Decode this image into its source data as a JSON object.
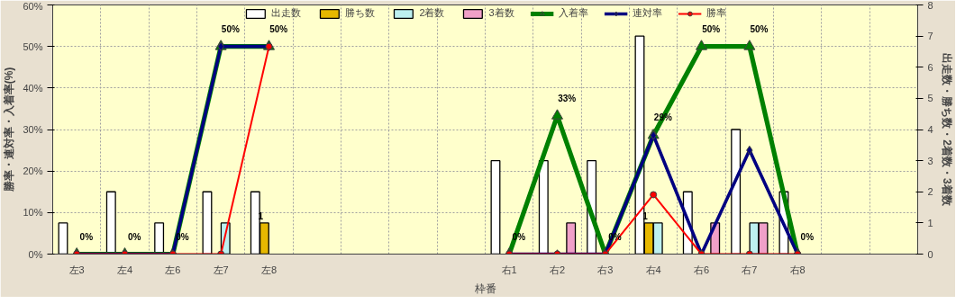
{
  "chart_data": {
    "type": "bar",
    "xlabel": "枠番",
    "ylabel": "勝率・連対率・入着率(%)",
    "y2label": "出走数・勝ち数・2着数・3着数",
    "categories": [
      "左3",
      "左4",
      "左6",
      "左7",
      "左8",
      null,
      null,
      null,
      null,
      "右1",
      "右2",
      "右3",
      "右4",
      "右6",
      "右7",
      "右8",
      null,
      null
    ],
    "ylim": [
      0,
      60
    ],
    "yticks": [
      {
        "value": 0,
        "label": "0%"
      },
      {
        "value": 10,
        "label": "10%"
      },
      {
        "value": 20,
        "label": "20%"
      },
      {
        "value": 30,
        "label": "30%"
      },
      {
        "value": 40,
        "label": "40%"
      },
      {
        "value": 50,
        "label": "50%"
      },
      {
        "value": 60,
        "label": "60%"
      }
    ],
    "y2lim": [
      0,
      8
    ],
    "y2ticks": [
      0,
      1,
      2,
      3,
      4,
      5,
      6,
      7,
      8
    ],
    "grid": true,
    "legend": "top",
    "series": [
      {
        "name": "出走数",
        "axis": "y2",
        "color": "#ffffff",
        "values": [
          1,
          2,
          1,
          2,
          2,
          null,
          null,
          null,
          null,
          3,
          3,
          3,
          7,
          2,
          4,
          2,
          null,
          null
        ]
      },
      {
        "name": "勝ち数",
        "axis": "y2",
        "color": "#e6b800",
        "values": [
          null,
          null,
          null,
          null,
          1,
          null,
          null,
          null,
          null,
          null,
          null,
          null,
          1,
          null,
          null,
          null,
          null,
          null
        ],
        "value_labels": [
          null,
          null,
          null,
          null,
          "1",
          null,
          null,
          null,
          null,
          null,
          null,
          null,
          "1",
          null,
          null,
          null,
          null,
          null
        ]
      },
      {
        "name": "2着数",
        "axis": "y2",
        "color": "#bdf0f0",
        "values": [
          null,
          null,
          null,
          1,
          null,
          null,
          null,
          null,
          null,
          null,
          null,
          null,
          1,
          null,
          1,
          null,
          null,
          null
        ]
      },
      {
        "name": "3着数",
        "axis": "y2",
        "color": "#f0a0c8",
        "values": [
          null,
          null,
          null,
          null,
          null,
          null,
          null,
          null,
          null,
          null,
          1,
          null,
          null,
          1,
          1,
          null,
          null,
          null
        ]
      },
      {
        "name": "入着率",
        "type": "line",
        "color": "#008000",
        "marker": "triangle",
        "values": [
          0,
          0,
          0,
          50,
          50,
          null,
          null,
          null,
          null,
          0,
          33.3,
          0,
          28.6,
          50,
          50,
          0,
          null,
          null
        ],
        "value_labels": [
          "0%",
          "0%",
          "0%",
          "50%",
          "50%",
          null,
          null,
          null,
          null,
          "0%",
          "33%",
          "0%",
          "29%",
          "50%",
          "50%",
          "0%",
          null,
          null
        ]
      },
      {
        "name": "連対率",
        "type": "line",
        "color": "#000080",
        "marker": "diamond",
        "values": [
          0,
          0,
          0,
          50,
          50,
          null,
          null,
          null,
          null,
          0,
          0,
          0,
          28.6,
          0,
          25,
          0,
          null,
          null
        ]
      },
      {
        "name": "勝率",
        "type": "line",
        "color": "#ff0000",
        "marker": "circle",
        "values": [
          0,
          0,
          0,
          0,
          50,
          null,
          null,
          null,
          null,
          0,
          0,
          0,
          14.3,
          0,
          0,
          0,
          null,
          null
        ]
      }
    ]
  }
}
